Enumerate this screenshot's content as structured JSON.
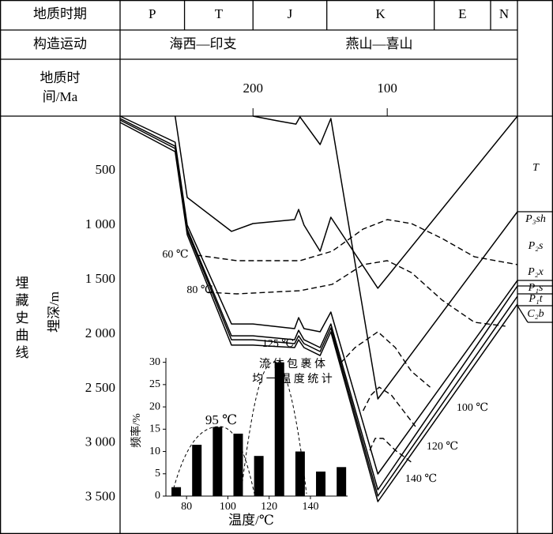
{
  "chart_data": [
    {
      "type": "line",
      "period_label": "地质时期",
      "tectonic_label": "构造运动",
      "time_label": [
        "地质时",
        "间/Ma"
      ],
      "periods": [
        "P",
        "T",
        "J",
        "K",
        "E",
        "N"
      ],
      "period_bounds": [
        299,
        251,
        200,
        145,
        65,
        23
      ],
      "tectonic_events": [
        "海西—印支",
        "燕山—喜山"
      ],
      "curve_label": "埋藏史曲线",
      "ylabel": "埋深/m",
      "xlim": [
        299,
        3
      ],
      "xticks": [
        200,
        100
      ],
      "ylim": [
        0,
        3835
      ],
      "yticks": [
        500,
        {
          "value": 1000,
          "label": "1 000"
        },
        {
          "value": 1500,
          "label": "1 500"
        },
        {
          "value": 2000,
          "label": "2 000"
        },
        {
          "value": 2500,
          "label": "2 500"
        },
        {
          "value": 3000,
          "label": "3 000"
        },
        {
          "value": 3500,
          "label": "3 500"
        }
      ],
      "strata": [
        "T",
        "P₃sh",
        "P₂s",
        "P₂x",
        "P₁s",
        "P₁t",
        "C₂b"
      ],
      "series": [
        {
          "style": "solid",
          "color": "#000",
          "x": [
            258,
            249,
            216,
            200,
            169,
            166,
            162,
            150,
            142,
            107,
            3
          ],
          "values": [
            0,
            747,
            1058,
            986,
            950,
            856,
            1000,
            1240,
            928,
            1580,
            0
          ]
        },
        {
          "style": "solid",
          "color": "#000",
          "x": [
            200,
            182,
            168,
            165,
            150,
            142,
            107,
            3
          ],
          "values": [
            0,
            43,
            73,
            7,
            261,
            22,
            2595,
            877
          ]
        },
        {
          "style": "solid",
          "color": "#000",
          "x": [
            299,
            258,
            249,
            216,
            200,
            169,
            166,
            162,
            150,
            142,
            107,
            3
          ],
          "values": [
            0,
            239,
            1000,
            1907,
            1907,
            1950,
            1849,
            1950,
            1979,
            1798,
            3284,
            1508
          ]
        },
        {
          "style": "solid",
          "color": "#000",
          "x": [
            299,
            258,
            249,
            216,
            200,
            169,
            166,
            162,
            150,
            142,
            107,
            3
          ],
          "values": [
            22,
            276,
            1037,
            2016,
            2016,
            2052,
            1965,
            2052,
            2124,
            1907,
            3429,
            1559
          ]
        },
        {
          "style": "solid",
          "color": "#000",
          "x": [
            299,
            258,
            249,
            216,
            200,
            169,
            166,
            162,
            150,
            142,
            107,
            3
          ],
          "values": [
            36,
            297,
            1058,
            2052,
            2052,
            2088,
            2016,
            2088,
            2160,
            1943,
            3487,
            1653
          ]
        },
        {
          "style": "solid",
          "color": "#000",
          "x": [
            299,
            258,
            249,
            216,
            200,
            169,
            166,
            162,
            150,
            142,
            107,
            3
          ],
          "values": [
            58,
            326,
            1088,
            2102,
            2102,
            2124,
            2052,
            2124,
            2197,
            1979,
            3538,
            1725
          ]
        },
        {
          "style": "dashed",
          "color": "#000",
          "x": [
            242,
            212,
            165,
            141,
            118,
            100,
            82,
            59,
            35,
            3
          ],
          "values": [
            1276,
            1327,
            1327,
            1240,
            1037,
            950,
            986,
            1124,
            1291,
            1363
          ]
        },
        {
          "style": "dashed",
          "color": "#000",
          "x": [
            234,
            212,
            165,
            141,
            118,
            100,
            82,
            59,
            35,
            12
          ],
          "values": [
            1617,
            1631,
            1602,
            1544,
            1363,
            1327,
            1436,
            1689,
            1892,
            1928
          ]
        },
        {
          "style": "dashed",
          "color": "#000",
          "x": [
            135,
            124,
            107,
            94,
            82,
            68
          ],
          "values": [
            2269,
            2124,
            1979,
            2124,
            2342,
            2487
          ]
        },
        {
          "style": "dashed",
          "color": "#000",
          "x": [
            118,
            112,
            106,
            97,
            88,
            79
          ],
          "values": [
            2704,
            2559,
            2487,
            2559,
            2704,
            2849
          ]
        },
        {
          "style": "dashed",
          "color": "#000",
          "x": [
            113,
            109,
            103,
            94,
            82
          ],
          "values": [
            3067,
            2958,
            2958,
            3067,
            3176
          ]
        }
      ],
      "annotations": [
        "60 ℃",
        "80 ℃",
        "125 ℃",
        "100 ℃",
        "120 ℃",
        "140 ℃"
      ]
    },
    {
      "type": "bar",
      "title": [
        "流 体 包 裹 体",
        "均 一 温 度 统 计"
      ],
      "xlabel": "温度/℃",
      "ylabel": "频率/%",
      "x": [
        75,
        85,
        95,
        105,
        115,
        125,
        135,
        145,
        155
      ],
      "values": [
        2,
        11.5,
        15.5,
        14,
        9,
        30,
        10,
        5.5,
        6.5
      ],
      "color": "#000",
      "xlim": [
        70,
        158
      ],
      "xticks": [
        80,
        100,
        120,
        140
      ],
      "ylim": [
        0,
        31
      ],
      "yticks": [
        0,
        5,
        10,
        15,
        20,
        25,
        30
      ],
      "annotations": [
        "95 ℃"
      ]
    }
  ]
}
